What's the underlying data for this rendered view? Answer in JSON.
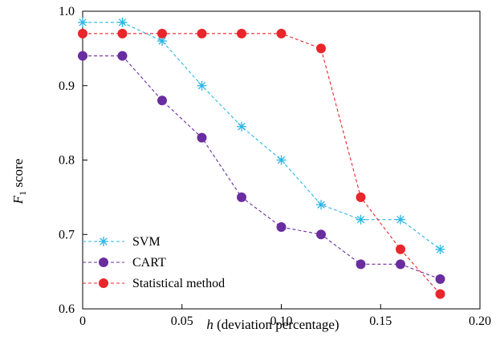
{
  "chart_data": {
    "type": "line",
    "xlabel_var": "h",
    "xlabel_rest": " (deviation percentage)",
    "ylabel_var": "F",
    "ylabel_sub": "1",
    "ylabel_rest": " score",
    "xlim": [
      0,
      0.2
    ],
    "ylim": [
      0.6,
      1.0
    ],
    "x_ticks": [
      0,
      0.05,
      0.1,
      0.15,
      0.2
    ],
    "x_tick_labels": [
      "0",
      "0.05",
      "0.10",
      "0.15",
      "0.20"
    ],
    "y_ticks": [
      0.6,
      0.7,
      0.8,
      0.9,
      1.0
    ],
    "y_tick_labels": [
      "0.6",
      "0.7",
      "0.8",
      "0.9",
      "1.0"
    ],
    "grid": false,
    "legend_position": "bottom-left",
    "x": [
      0,
      0.02,
      0.04,
      0.06,
      0.08,
      0.1,
      0.12,
      0.14,
      0.16,
      0.18
    ],
    "series": [
      {
        "name": "SVM",
        "marker": "asterisk",
        "color": "#29b6e6",
        "values": [
          0.985,
          0.985,
          0.96,
          0.9,
          0.845,
          0.8,
          0.74,
          0.72,
          0.72,
          0.68
        ]
      },
      {
        "name": "CART",
        "marker": "circle",
        "color": "#6a2d9f",
        "values": [
          0.94,
          0.94,
          0.88,
          0.83,
          0.75,
          0.71,
          0.7,
          0.66,
          0.66,
          0.64
        ]
      },
      {
        "name": "Statistical method",
        "marker": "circle",
        "color": "#e8262b",
        "values": [
          0.97,
          0.97,
          0.97,
          0.97,
          0.97,
          0.97,
          0.95,
          0.75,
          0.68,
          0.62
        ]
      }
    ]
  }
}
